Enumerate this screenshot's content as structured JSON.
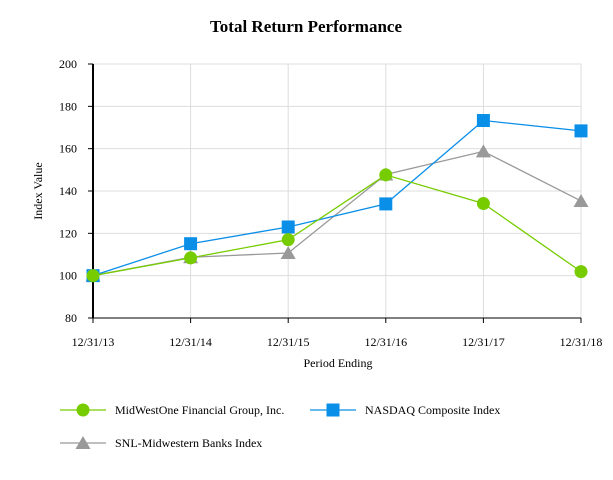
{
  "chart_data": {
    "type": "line",
    "title": "Total Return Performance",
    "xlabel": "Period Ending",
    "ylabel": "Index Value",
    "categories": [
      "12/31/13",
      "12/31/14",
      "12/31/15",
      "12/31/16",
      "12/31/17",
      "12/31/18"
    ],
    "ylim": [
      80,
      200
    ],
    "yticks": [
      80,
      100,
      120,
      140,
      160,
      180,
      200
    ],
    "grid": true,
    "legend_placement": "bottom",
    "series": [
      {
        "name": "MidWestOne Financial Group, Inc.",
        "values": [
          100,
          108.4,
          117.0,
          147.6,
          134.1,
          101.9
        ],
        "color": "#77cc00",
        "marker": "circle"
      },
      {
        "name": "NASDAQ Composite Index",
        "values": [
          100,
          115.1,
          123.0,
          133.9,
          173.3,
          168.4
        ],
        "color": "#0a8fe8",
        "marker": "square"
      },
      {
        "name": "SNL-Midwestern Banks Index",
        "values": [
          100,
          108.7,
          110.7,
          147.8,
          158.7,
          135.3
        ],
        "color": "#999999",
        "marker": "triangle"
      }
    ]
  }
}
